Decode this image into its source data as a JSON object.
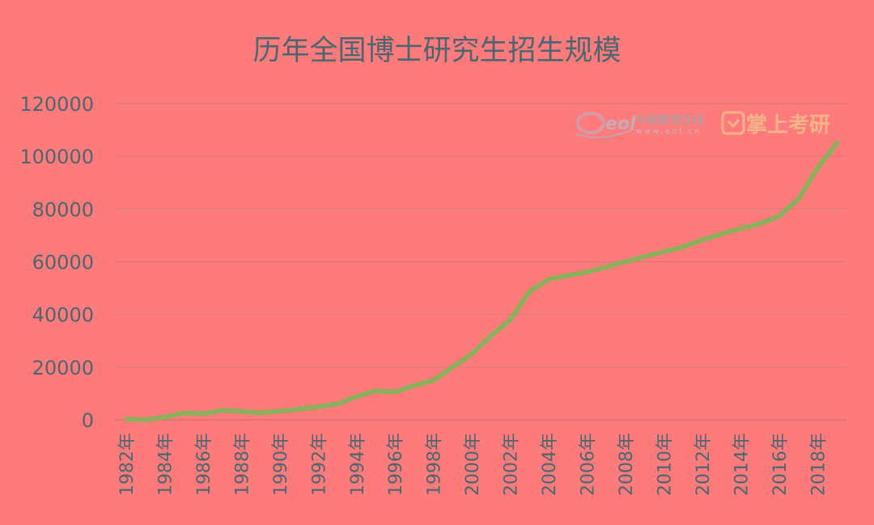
{
  "chart_data": {
    "type": "line",
    "title": "历年全国博士研究生招生规模",
    "xlabel": "",
    "ylabel": "",
    "ylim": [
      0,
      120000
    ],
    "yticks": [
      0,
      20000,
      40000,
      60000,
      80000,
      100000,
      120000
    ],
    "grid": true,
    "legend": "none",
    "x": [
      "1982年",
      "1983年",
      "1984年",
      "1985年",
      "1986年",
      "1987年",
      "1988年",
      "1989年",
      "1990年",
      "1991年",
      "1992年",
      "1993年",
      "1994年",
      "1995年",
      "1996年",
      "1997年",
      "1998年",
      "1999年",
      "2000年",
      "2001年",
      "2002年",
      "2003年",
      "2004年",
      "2005年",
      "2006年",
      "2007年",
      "2008年",
      "2009年",
      "2010年",
      "2011年",
      "2012年",
      "2013年",
      "2014年",
      "2015年",
      "2016年",
      "2017年",
      "2018年",
      "2019年"
    ],
    "x_tick_labels": [
      "1982年",
      "1984年",
      "1986年",
      "1988年",
      "1990年",
      "1992年",
      "1994年",
      "1996年",
      "1998年",
      "2000年",
      "2002年",
      "2004年",
      "2006年",
      "2008年",
      "2010年",
      "2012年",
      "2014年",
      "2016年",
      "2018年"
    ],
    "series": [
      {
        "values": [
          302,
          0,
          1000,
          2600,
          2300,
          3600,
          3200,
          2600,
          3300,
          4000,
          5000,
          6000,
          8900,
          11000,
          10600,
          13000,
          15000,
          20000,
          25000,
          32000,
          38000,
          48700,
          53300,
          54800,
          56000,
          58000,
          60000,
          62000,
          63800,
          65600,
          68300,
          70500,
          72600,
          74400,
          77300,
          83800,
          95500,
          105000
        ]
      }
    ],
    "colors": {
      "background": "#ff7b7b",
      "line": "#8caf5c",
      "grid": "#d97a7a",
      "text": "#4a6670"
    },
    "watermark": {
      "logo": "eol",
      "site_name": "中国教育在线",
      "url": "www.eol.cn",
      "brand": "掌上考研"
    }
  }
}
